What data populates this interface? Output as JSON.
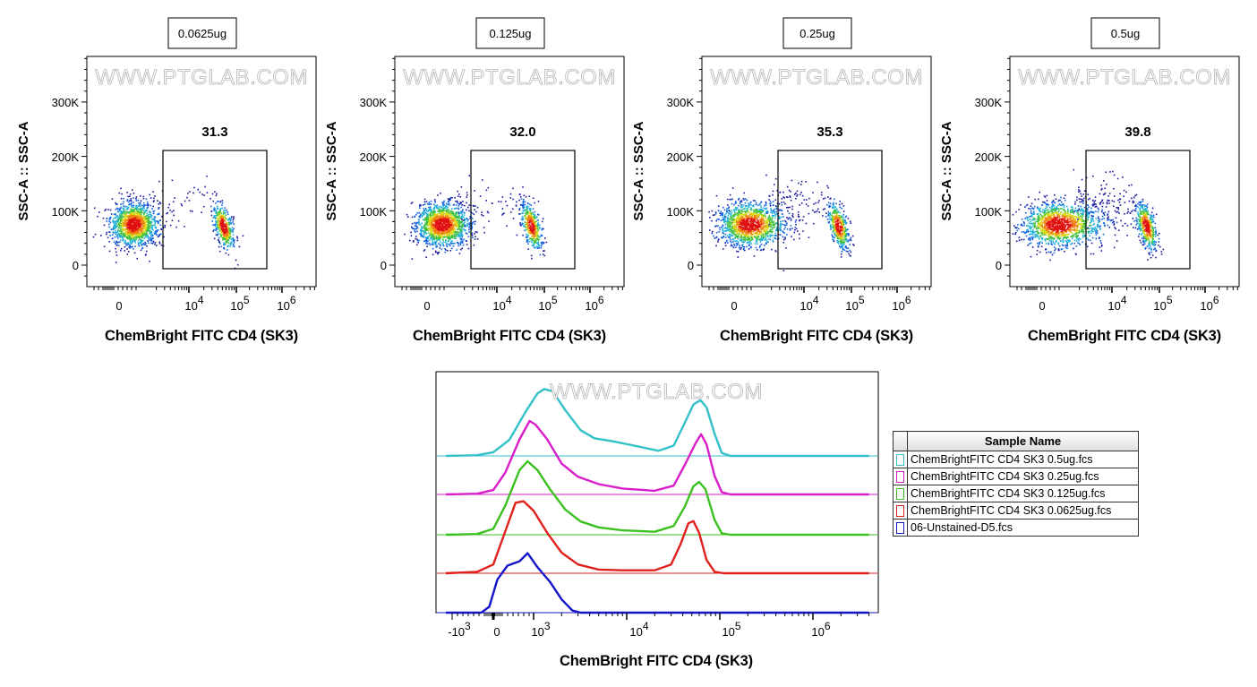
{
  "watermark": "WWW.PTGLAB.COM",
  "chart_data": [
    {
      "type": "scatter",
      "title": "0.0625ug",
      "gate_percent": "31.3",
      "xlabel": "ChemBright FITC CD4 (SK3)",
      "ylabel": "SSC-A :: SSC-A",
      "yticks": [
        "0",
        "100K",
        "200K",
        "300K"
      ],
      "xticks": [
        "0",
        "10^4",
        "10^5",
        "10^6"
      ],
      "xscale": "biexponential"
    },
    {
      "type": "scatter",
      "title": "0.125ug",
      "gate_percent": "32.0",
      "xlabel": "ChemBright FITC CD4 (SK3)",
      "ylabel": "SSC-A :: SSC-A",
      "yticks": [
        "0",
        "100K",
        "200K",
        "300K"
      ],
      "xticks": [
        "0",
        "10^4",
        "10^5",
        "10^6"
      ],
      "xscale": "biexponential"
    },
    {
      "type": "scatter",
      "title": "0.25ug",
      "gate_percent": "35.3",
      "xlabel": "ChemBright FITC CD4 (SK3)",
      "ylabel": "SSC-A :: SSC-A",
      "yticks": [
        "0",
        "100K",
        "200K",
        "300K"
      ],
      "xticks": [
        "0",
        "10^4",
        "10^5",
        "10^6"
      ],
      "xscale": "biexponential"
    },
    {
      "type": "scatter",
      "title": "0.5ug",
      "gate_percent": "39.8",
      "xlabel": "ChemBright FITC CD4 (SK3)",
      "ylabel": "SSC-A :: SSC-A",
      "yticks": [
        "0",
        "100K",
        "200K",
        "300K"
      ],
      "xticks": [
        "0",
        "10^4",
        "10^5",
        "10^6"
      ],
      "xscale": "biexponential"
    },
    {
      "type": "line",
      "subtype": "offset histogram",
      "xlabel": "ChemBright FITC CD4 (SK3)",
      "xscale": "biexponential",
      "xticks": [
        "-10^3",
        "0",
        "10^3",
        "10^4",
        "10^5",
        "10^6"
      ],
      "legend_title": "Sample Name",
      "legend_placement": "right",
      "series": [
        {
          "name": "ChemBrightFITC CD4 SK3 0.5ug.fcs",
          "color": "#33c0c8",
          "points": [
            [
              -1500,
              0
            ],
            [
              -400,
              1
            ],
            [
              0,
              5
            ],
            [
              400,
              22
            ],
            [
              800,
              60
            ],
            [
              1100,
              85
            ],
            [
              1300,
              91
            ],
            [
              1600,
              88
            ],
            [
              2200,
              62
            ],
            [
              3200,
              35
            ],
            [
              4500,
              24
            ],
            [
              7000,
              20
            ],
            [
              12000,
              14
            ],
            [
              22000,
              7
            ],
            [
              32000,
              14
            ],
            [
              42000,
              45
            ],
            [
              52000,
              70
            ],
            [
              62000,
              76
            ],
            [
              72000,
              66
            ],
            [
              88000,
              30
            ],
            [
              105000,
              4
            ],
            [
              130000,
              0
            ],
            [
              4000000,
              0
            ]
          ]
        },
        {
          "name": "ChemBrightFITC CD4 SK3 0.25ug.fcs",
          "color": "#d81ec8",
          "points": [
            [
              -1500,
              0
            ],
            [
              -400,
              1
            ],
            [
              0,
              6
            ],
            [
              300,
              30
            ],
            [
              650,
              75
            ],
            [
              900,
              100
            ],
            [
              1050,
              95
            ],
            [
              1400,
              75
            ],
            [
              2000,
              42
            ],
            [
              3000,
              24
            ],
            [
              5000,
              14
            ],
            [
              9000,
              8
            ],
            [
              20000,
              5
            ],
            [
              32000,
              12
            ],
            [
              42000,
              40
            ],
            [
              55000,
              70
            ],
            [
              63000,
              82
            ],
            [
              72000,
              68
            ],
            [
              88000,
              25
            ],
            [
              105000,
              3
            ],
            [
              130000,
              0
            ],
            [
              4000000,
              0
            ]
          ]
        },
        {
          "name": "ChemBrightFITC CD4 SK3 0.125ug.fcs",
          "color": "#3cc020",
          "points": [
            [
              -1500,
              0
            ],
            [
              -400,
              1
            ],
            [
              0,
              8
            ],
            [
              300,
              40
            ],
            [
              650,
              88
            ],
            [
              850,
              100
            ],
            [
              1100,
              88
            ],
            [
              1500,
              62
            ],
            [
              2200,
              34
            ],
            [
              3200,
              18
            ],
            [
              5000,
              10
            ],
            [
              9000,
              6
            ],
            [
              20000,
              4
            ],
            [
              32000,
              12
            ],
            [
              42000,
              38
            ],
            [
              52000,
              66
            ],
            [
              60000,
              72
            ],
            [
              70000,
              62
            ],
            [
              88000,
              20
            ],
            [
              105000,
              2
            ],
            [
              130000,
              0
            ],
            [
              4000000,
              0
            ]
          ]
        },
        {
          "name": "ChemBrightFITC CD4 SK3 0.0625ug.fcs",
          "color": "#e0201c",
          "points": [
            [
              -1500,
              0
            ],
            [
              -400,
              2
            ],
            [
              0,
              12
            ],
            [
              250,
              50
            ],
            [
              550,
              96
            ],
            [
              750,
              98
            ],
            [
              1000,
              85
            ],
            [
              1400,
              55
            ],
            [
              2000,
              28
            ],
            [
              3000,
              12
            ],
            [
              5000,
              5
            ],
            [
              9000,
              4
            ],
            [
              20000,
              4
            ],
            [
              30000,
              12
            ],
            [
              38000,
              40
            ],
            [
              46000,
              68
            ],
            [
              52000,
              71
            ],
            [
              60000,
              55
            ],
            [
              72000,
              18
            ],
            [
              88000,
              2
            ],
            [
              110000,
              0
            ],
            [
              4000000,
              0
            ]
          ]
        },
        {
          "name": "06-Unstained-D5.fcs",
          "color": "#1414c8",
          "points": [
            [
              -1500,
              0
            ],
            [
              -300,
              0
            ],
            [
              -100,
              8
            ],
            [
              100,
              45
            ],
            [
              350,
              64
            ],
            [
              650,
              70
            ],
            [
              850,
              81
            ],
            [
              1100,
              62
            ],
            [
              1500,
              42
            ],
            [
              2000,
              18
            ],
            [
              2600,
              3
            ],
            [
              3200,
              0
            ],
            [
              4000000,
              0
            ]
          ]
        }
      ]
    }
  ]
}
